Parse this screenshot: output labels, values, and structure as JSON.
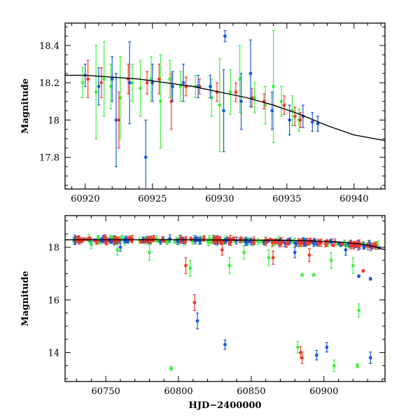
{
  "figure": {
    "colors": {
      "green": "#3ef03e",
      "red": "#f43a2a",
      "blue": "#1d5ad8",
      "model": "#000000"
    }
  },
  "chart_data": [
    {
      "type": "scatter",
      "title": "",
      "xlabel": "",
      "ylabel": "Magnitude",
      "xlim": [
        60918.5,
        60942.3
      ],
      "ylim": [
        18.52,
        17.63
      ],
      "y_inverted": true,
      "xticks": [
        60920,
        60925,
        60930,
        60935,
        60940
      ],
      "yticks": [
        17.8,
        18,
        18.2,
        18.4
      ],
      "ytick_labels": [
        "17.8",
        "18",
        "18.2",
        "18.4"
      ],
      "grid": false,
      "legend": "none",
      "series": [
        {
          "color": "green",
          "points": [
            [
              60919.8,
              18.2,
              0.08
            ],
            [
              60920.8,
              18.15,
              0.25
            ],
            [
              60921.4,
              18.22,
              0.2
            ],
            [
              60921.9,
              18.18,
              0.12
            ],
            [
              60922.6,
              18.12,
              0.22
            ],
            [
              60923.5,
              18.2,
              0.1
            ],
            [
              60924.1,
              18.17,
              0.15
            ],
            [
              60924.9,
              18.22,
              0.12
            ],
            [
              60925.6,
              18.1,
              0.25
            ],
            [
              60926.3,
              18.22,
              0.1
            ],
            [
              60927.1,
              18.18,
              0.08
            ],
            [
              60928.2,
              18.18,
              0.06
            ],
            [
              60929.4,
              18.12,
              0.1
            ],
            [
              60930.0,
              18.08,
              0.25
            ],
            [
              60930.8,
              18.15,
              0.12
            ],
            [
              60931.5,
              18.22,
              0.18
            ],
            [
              60932.6,
              18.12,
              0.08
            ],
            [
              60933.4,
              18.08,
              0.1
            ],
            [
              60934.0,
              18.18,
              0.3
            ],
            [
              60934.6,
              18.1,
              0.08
            ],
            [
              60935.4,
              18.05,
              0.08
            ],
            [
              60935.9,
              18.0,
              0.06
            ]
          ]
        },
        {
          "color": "red",
          "points": [
            [
              60920.2,
              18.22,
              0.1
            ],
            [
              60921.2,
              18.2,
              0.08
            ],
            [
              60922.5,
              18.0,
              0.15
            ],
            [
              60923.2,
              18.22,
              0.08
            ],
            [
              60924.6,
              18.2,
              0.06
            ],
            [
              60925.5,
              18.22,
              0.08
            ],
            [
              60926.4,
              18.1,
              0.15
            ],
            [
              60927.5,
              18.18,
              0.05
            ],
            [
              60928.5,
              18.18,
              0.04
            ],
            [
              60929.8,
              18.15,
              0.05
            ],
            [
              60931.2,
              18.15,
              0.05
            ],
            [
              60932.4,
              18.12,
              0.05
            ],
            [
              60933.3,
              18.1,
              0.04
            ],
            [
              60934.8,
              18.08,
              0.05
            ],
            [
              60935.6,
              18.02,
              0.05
            ],
            [
              60936.0,
              18.0,
              0.04
            ]
          ]
        },
        {
          "color": "blue",
          "points": [
            [
              60920.0,
              18.24,
              0.06
            ],
            [
              60921.0,
              18.18,
              0.1
            ],
            [
              60922.0,
              18.22,
              0.12
            ],
            [
              60922.3,
              18.0,
              0.25
            ],
            [
              60923.3,
              18.2,
              0.22
            ],
            [
              60924.5,
              17.8,
              0.2
            ],
            [
              60925.0,
              18.2,
              0.1
            ],
            [
              60926.5,
              18.18,
              0.08
            ],
            [
              60927.3,
              18.2,
              0.1
            ],
            [
              60928.4,
              18.18,
              0.06
            ],
            [
              60929.3,
              18.18,
              0.06
            ],
            [
              60930.3,
              18.05,
              0.22
            ],
            [
              60930.4,
              18.45,
              0.03
            ],
            [
              60931.6,
              18.1,
              0.15
            ],
            [
              60932.3,
              18.25,
              0.18
            ],
            [
              60933.9,
              18.05,
              0.1
            ],
            [
              60935.2,
              18.0,
              0.08
            ],
            [
              60936.2,
              18.02,
              0.06
            ],
            [
              60936.9,
              17.99,
              0.05
            ],
            [
              60937.3,
              17.98,
              0.04
            ]
          ]
        }
      ],
      "model_curve": [
        [
          60918.5,
          18.24
        ],
        [
          60920,
          18.24
        ],
        [
          60922,
          18.23
        ],
        [
          60924,
          18.22
        ],
        [
          60926,
          18.2
        ],
        [
          60928,
          18.18
        ],
        [
          60930,
          18.15
        ],
        [
          60932,
          18.12
        ],
        [
          60934,
          18.08
        ],
        [
          60936,
          18.03
        ],
        [
          60938,
          17.97
        ],
        [
          60940,
          17.92
        ],
        [
          60942.3,
          17.89
        ]
      ]
    },
    {
      "type": "scatter",
      "title": "",
      "xlabel": "HJD−2400000",
      "ylabel": "Magnitude",
      "xlim": [
        60722,
        60942
      ],
      "ylim": [
        19.2,
        12.9
      ],
      "y_inverted": true,
      "xticks": [
        60750,
        60800,
        60850,
        60900
      ],
      "yticks": [
        14,
        16,
        18
      ],
      "ytick_labels": [
        "14",
        "16",
        "18"
      ],
      "grid": false,
      "legend": "none",
      "series": [
        {
          "color": "green",
          "points": [
            [
              60795,
              13.4,
              0.08
            ],
            [
              60882,
              14.2,
              0.22
            ],
            [
              60907,
              13.5,
              0.22
            ],
            [
              60923,
              13.5,
              0.08
            ],
            [
              60924,
              15.6,
              0.25
            ],
            [
              60885,
              16.95,
              0.05
            ],
            [
              60893,
              16.95,
              0.05
            ],
            [
              60808,
              17.2,
              0.3
            ],
            [
              60835,
              17.3,
              0.3
            ],
            [
              60758,
              17.9,
              0.2
            ],
            [
              60780,
              17.8,
              0.3
            ],
            [
              60862,
              17.6,
              0.3
            ],
            [
              60905,
              17.5,
              0.3
            ],
            [
              60920,
              17.3,
              0.3
            ],
            [
              60845,
              17.8,
              0.25
            ],
            [
              60740,
              18.1,
              0.15
            ]
          ]
        },
        {
          "color": "red",
          "points": [
            [
              60811,
              15.9,
              0.3
            ],
            [
              60884,
              14.0,
              0.22
            ],
            [
              60885,
              13.8,
              0.22
            ],
            [
              60927,
              17.1,
              0.05
            ],
            [
              60805,
              17.3,
              0.3
            ],
            [
              60865,
              17.6,
              0.25
            ],
            [
              60890,
              17.7,
              0.25
            ],
            [
              60830,
              17.9,
              0.2
            ]
          ]
        },
        {
          "color": "blue",
          "points": [
            [
              60813,
              15.2,
              0.3
            ],
            [
              60832,
              14.3,
              0.18
            ],
            [
              60895,
              13.9,
              0.18
            ],
            [
              60902,
              14.2,
              0.18
            ],
            [
              60932,
              13.8,
              0.22
            ],
            [
              60924,
              16.9,
              0.05
            ],
            [
              60932,
              16.8,
              0.05
            ],
            [
              60880,
              17.8,
              0.2
            ],
            [
              60915,
              17.9,
              0.2
            ],
            [
              60760,
              18.0,
              0.15
            ]
          ]
        }
      ],
      "band": {
        "x_start": 60728,
        "x_end": 60938,
        "y_at_start": 18.28,
        "y_at_end": 18.05,
        "scatter": 0.08,
        "count_per_color": 120
      },
      "model_curve": [
        [
          60722,
          18.28
        ],
        [
          60800,
          18.28
        ],
        [
          60880,
          18.26
        ],
        [
          60910,
          18.2
        ],
        [
          60925,
          18.12
        ],
        [
          60935,
          18.02
        ],
        [
          60942,
          17.9
        ]
      ]
    }
  ]
}
